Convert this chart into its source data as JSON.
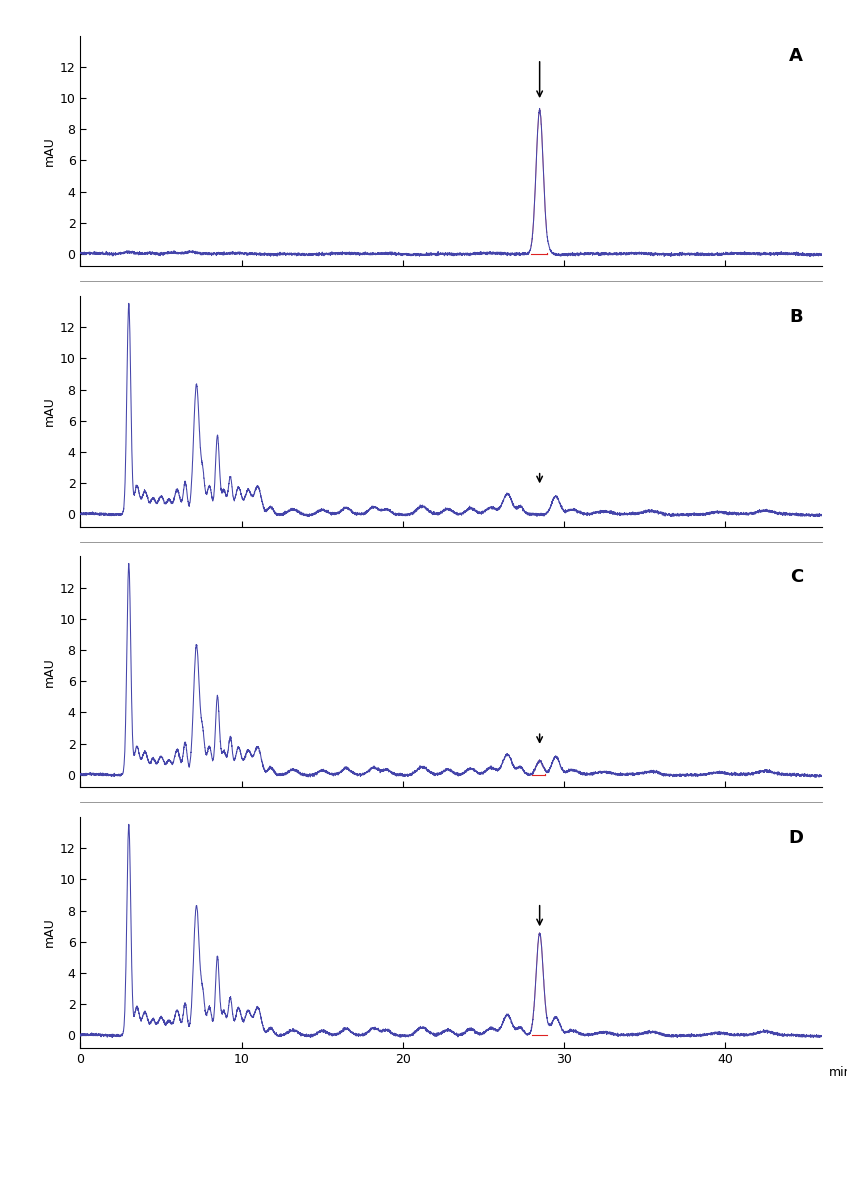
{
  "panels": [
    "A",
    "B",
    "C",
    "D"
  ],
  "xlim": [
    0,
    46
  ],
  "ylim": [
    -0.8,
    14
  ],
  "yticks": [
    0,
    2,
    4,
    6,
    8,
    10,
    12
  ],
  "xticks": [
    0,
    10,
    20,
    30,
    40
  ],
  "xlabel": "min",
  "ylabel": "mAU",
  "line_color": "#4444aa",
  "red_color": "#dd2222",
  "bg_color": "#ffffff",
  "panel_bg": "#ffffff",
  "separator_color": "#888888",
  "fenpyrazamine_rt": 28.5,
  "arrows": {
    "A": {
      "x": 28.5,
      "y_start": 12.5,
      "y_end": 9.8
    },
    "B": {
      "x": 28.5,
      "y_start": 2.8,
      "y_end": 1.8
    },
    "C": {
      "x": 28.5,
      "y_start": 2.8,
      "y_end": 1.8
    },
    "D": {
      "x": 28.5,
      "y_start": 8.5,
      "y_end": 6.8
    }
  }
}
